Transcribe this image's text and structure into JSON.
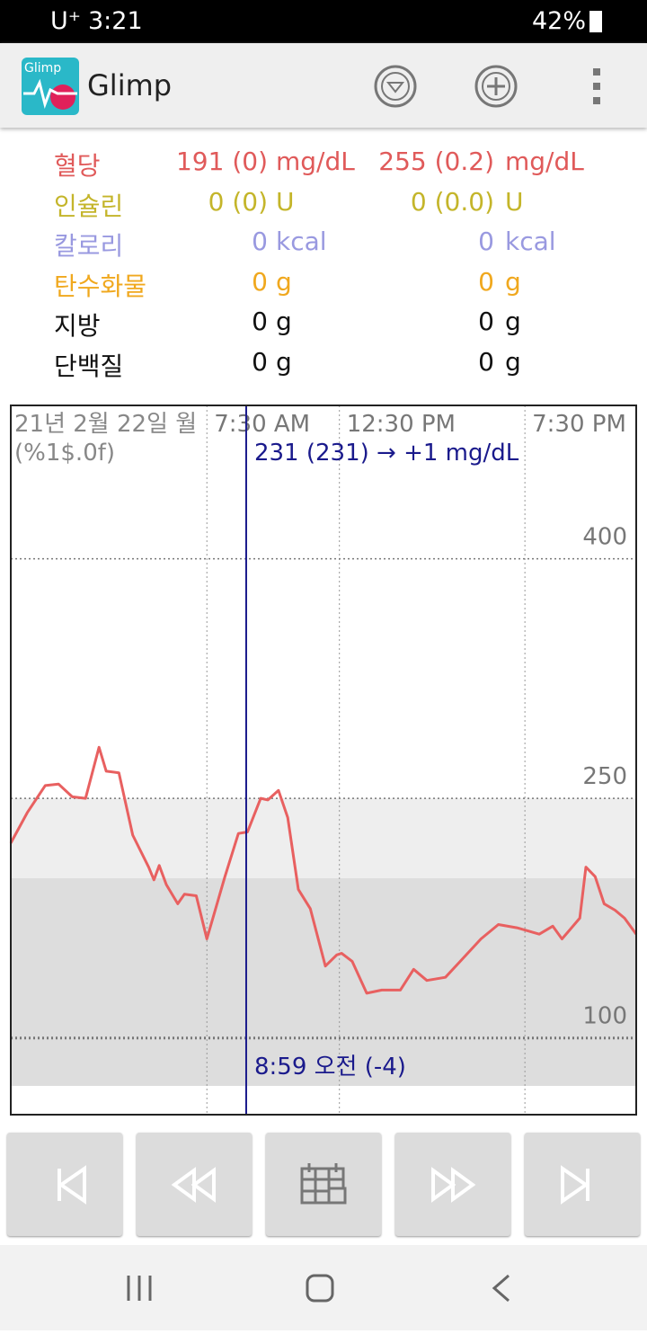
{
  "status": {
    "carrier": "U⁺",
    "time": "3:21",
    "battery": "42%"
  },
  "app": {
    "icon_text": "Glimp",
    "title": "Glimp"
  },
  "stats": [
    {
      "label": "혈당",
      "v1": "191 (0)",
      "u1": "mg/dL",
      "v2": "255 (0.2)",
      "u2": "mg/dL",
      "color": "#e05a5a"
    },
    {
      "label": "인슐린",
      "v1": "0 (0)",
      "u1": "U",
      "v2": "0 (0.0)",
      "u2": "U",
      "color": "#c4b52a"
    },
    {
      "label": "칼로리",
      "v1": "0",
      "u1": "kcal",
      "v2": "0",
      "u2": "kcal",
      "color": "#9999e0"
    },
    {
      "label": "탄수화물",
      "v1": "0",
      "u1": "g",
      "v2": "0",
      "u2": "g",
      "color": "#f0a81e"
    },
    {
      "label": "지방",
      "v1": "0",
      "u1": "g",
      "v2": "0",
      "u2": "g",
      "color": "#111111"
    },
    {
      "label": "단백질",
      "v1": "0",
      "u1": "g",
      "v2": "0",
      "u2": "g",
      "color": "#111111"
    }
  ],
  "chart": {
    "type": "line",
    "date_label": "21년 2월 22일 월",
    "format_label": "(%1$.0f)",
    "cursor_readout": "231 (231) → +1 mg/dL",
    "cursor_time": "8:59 오전 (-4)",
    "cursor": 8.983,
    "color": "#e86060",
    "x": [
      0.1,
      0.72,
      1.4,
      1.9,
      2.42,
      2.92,
      3.43,
      3.7,
      4.18,
      4.7,
      5.3,
      5.5,
      5.7,
      5.97,
      6.4,
      6.65,
      7.1,
      7.5,
      8.18,
      8.69,
      9.03,
      9.53,
      9.8,
      10.2,
      10.55,
      10.95,
      11.4,
      11.97,
      12.4,
      12.58,
      12.98,
      13.53,
      14.1,
      14.8,
      15.3,
      15.8,
      16.5,
      17.06,
      17.84,
      18.5,
      19.2,
      20.04,
      20.55,
      20.9,
      21.57,
      21.8,
      22.15,
      22.49,
      22.9,
      23.26,
      23.7
    ],
    "values": [
      222,
      241,
      258,
      259,
      251,
      250,
      282,
      267,
      266,
      227,
      207,
      199,
      208,
      196,
      184,
      190,
      189,
      162,
      201,
      228,
      229,
      250,
      249,
      255,
      238,
      193,
      181,
      145,
      152,
      153,
      148,
      128,
      130,
      130,
      143,
      136,
      138,
      148,
      162,
      171,
      169,
      165,
      170,
      162,
      175,
      207,
      201,
      184,
      180,
      175,
      165
    ],
    "bands": [
      {
        "from": 200,
        "to": 250,
        "color": "#eeeeee"
      },
      {
        "from": 70,
        "to": 200,
        "color": "#dddddd"
      }
    ],
    "xlim": [
      0.1,
      23.7
    ],
    "ylim": [
      52,
      496
    ],
    "xticks": [
      {
        "value": 7.5,
        "label": "7:30 AM"
      },
      {
        "value": 12.5,
        "label": "12:30 PM"
      },
      {
        "value": 19.5,
        "label": "7:30 PM"
      }
    ],
    "yticks": [
      100,
      250,
      400
    ],
    "grid": true
  }
}
